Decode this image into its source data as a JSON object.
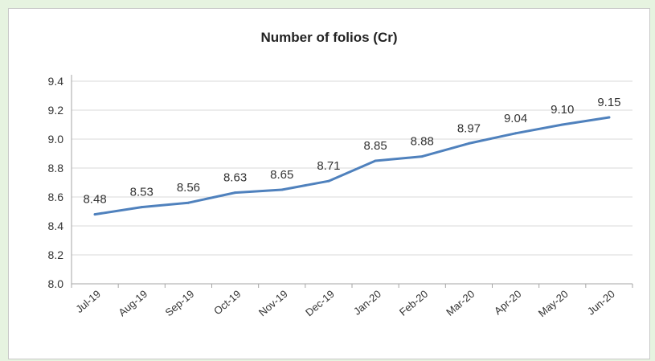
{
  "chart_data": {
    "type": "line",
    "title": "Number of folios (Cr)",
    "xlabel": "",
    "ylabel": "",
    "categories": [
      "Jul-19",
      "Aug-19",
      "Sep-19",
      "Oct-19",
      "Nov-19",
      "Dec-19",
      "Jan-20",
      "Feb-20",
      "Mar-20",
      "Apr-20",
      "May-20",
      "Jun-20"
    ],
    "series": [
      {
        "values": [
          8.48,
          8.53,
          8.56,
          8.63,
          8.65,
          8.71,
          8.85,
          8.88,
          8.97,
          9.04,
          9.1,
          9.15
        ],
        "labels": [
          "8.48",
          "8.53",
          "8.56",
          "8.63",
          "8.65",
          "8.71",
          "8.85",
          "8.88",
          "8.97",
          "9.04",
          "9.10",
          "9.15"
        ]
      }
    ],
    "ylim": [
      8.0,
      9.4
    ],
    "yticks": [
      "8.0",
      "8.2",
      "8.4",
      "8.6",
      "8.8",
      "9.0",
      "9.2",
      "9.4"
    ],
    "grid": true,
    "legend": "none",
    "colors": {
      "line": "#4f81bd",
      "grid": "#d9d9d9",
      "axis": "#a6a6a6"
    }
  }
}
